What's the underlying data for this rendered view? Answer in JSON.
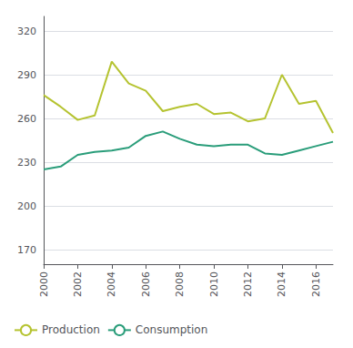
{
  "chart_data": {
    "type": "line",
    "x": [
      2000,
      2001,
      2002,
      2003,
      2004,
      2005,
      2006,
      2007,
      2008,
      2009,
      2010,
      2011,
      2012,
      2013,
      2014,
      2015,
      2016,
      2017
    ],
    "series": [
      {
        "name": "Production",
        "color": "#b5c330",
        "values": [
          276,
          268,
          259,
          262,
          299,
          284,
          279,
          265,
          268,
          270,
          263,
          264,
          258,
          260,
          290,
          270,
          272,
          250
        ]
      },
      {
        "name": "Consumption",
        "color": "#2a9d7a",
        "values": [
          225,
          227,
          235,
          237,
          238,
          240,
          248,
          251,
          246,
          242,
          241,
          242,
          242,
          236,
          235,
          238,
          241,
          244
        ]
      }
    ],
    "xlim": [
      2000,
      2017
    ],
    "xticks": [
      2000,
      2002,
      2004,
      2006,
      2008,
      2010,
      2012,
      2014,
      2016
    ],
    "ylim": [
      160,
      330
    ],
    "yticks": [
      170,
      200,
      230,
      260,
      290,
      320
    ],
    "grid": true,
    "legend": "bottom"
  }
}
